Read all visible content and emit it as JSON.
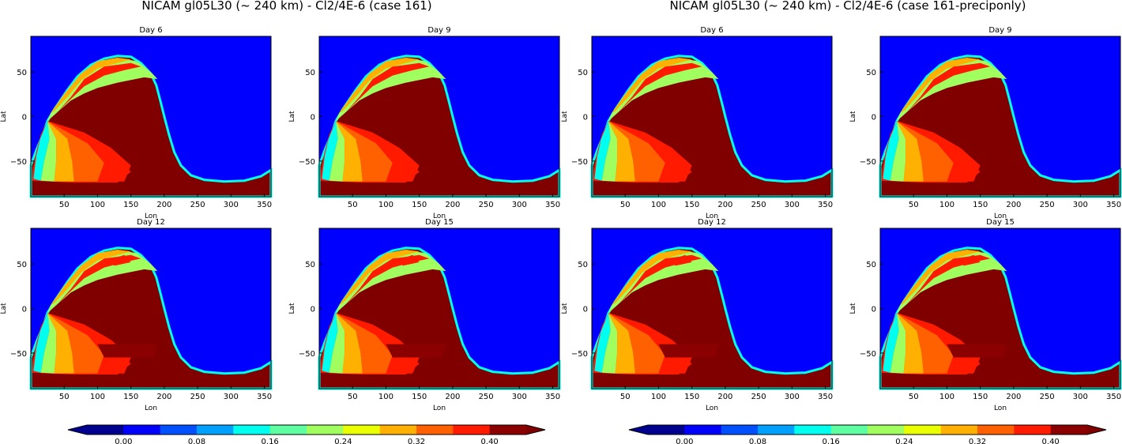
{
  "figure": {
    "left_title": "NICAM gl05L30 (~ 240 km) - Cl2/4E-6 (case 161)",
    "right_title": "NICAM gl05L30 (~ 240 km) - Cl2/4E-6 (case 161-preciponly)"
  },
  "chart_data": {
    "type": "heatmap",
    "x_axis": {
      "label": "Lon",
      "range": [
        0,
        360
      ],
      "ticks": [
        "50",
        "100",
        "150",
        "200",
        "250",
        "300",
        "350"
      ]
    },
    "y_axis": {
      "label": "Lat",
      "range": [
        -90,
        90
      ],
      "ticks": [
        "50",
        "0",
        "−50"
      ]
    },
    "panels": [
      {
        "group": "case 161",
        "title": "Day 6",
        "day": 6,
        "front_lat_peak": 67,
        "front_lon_peak": 140
      },
      {
        "group": "case 161",
        "title": "Day 9",
        "day": 9,
        "front_lat_peak": 68,
        "front_lon_peak": 130
      },
      {
        "group": "case 161",
        "title": "Day 12",
        "day": 12,
        "front_lat_peak": 68,
        "front_lon_peak": 130
      },
      {
        "group": "case 161",
        "title": "Day 15",
        "day": 15,
        "front_lat_peak": 68,
        "front_lon_peak": 120
      },
      {
        "group": "case 161-preciponly",
        "title": "Day 6",
        "day": 6,
        "front_lat_peak": 67,
        "front_lon_peak": 140
      },
      {
        "group": "case 161-preciponly",
        "title": "Day 9",
        "day": 9,
        "front_lat_peak": 68,
        "front_lon_peak": 130
      },
      {
        "group": "case 161-preciponly",
        "title": "Day 12",
        "day": 12,
        "front_lat_peak": 68,
        "front_lon_peak": 130
      },
      {
        "group": "case 161-preciponly",
        "title": "Day 15",
        "day": 15,
        "front_lat_peak": 68,
        "front_lon_peak": 120
      }
    ],
    "colorbar": {
      "extend": "both",
      "tick_labels": [
        "0.00",
        "0.08",
        "0.16",
        "0.24",
        "0.32",
        "0.40"
      ],
      "levels": [
        0.0,
        0.04,
        0.08,
        0.12,
        0.16,
        0.2,
        0.24,
        0.28,
        0.32,
        0.36,
        0.4
      ],
      "colors": [
        "#00008f",
        "#0000ff",
        "#0050ff",
        "#00a0ff",
        "#00ffee",
        "#5effa0",
        "#a0ff5e",
        "#eaff00",
        "#ffb000",
        "#ff6000",
        "#ff1a00",
        "#8b0000"
      ],
      "under_color": "#00008f",
      "over_color": "#800000"
    },
    "colors": {
      "background_field": "#0000ff",
      "max_field": "#800000"
    }
  }
}
